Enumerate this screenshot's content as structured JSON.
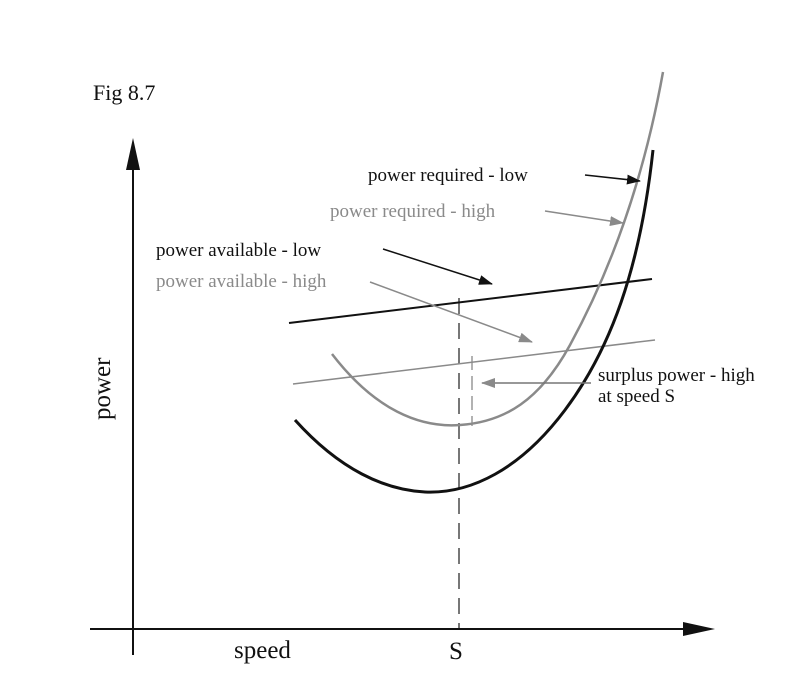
{
  "figure": {
    "title": "Fig 8.7",
    "x_axis_label": "speed",
    "y_axis_label": "power",
    "x_tick_label": "S"
  },
  "labels": {
    "power_required_low": "power required - low",
    "power_required_high": "power required - high",
    "power_available_low": "power available - low",
    "power_available_high": "power available - high",
    "surplus_line1": "surplus power - high",
    "surplus_line2": "at speed S"
  },
  "colors": {
    "black": "#111111",
    "gray": "#8a8a8a",
    "background": "#ffffff"
  }
}
